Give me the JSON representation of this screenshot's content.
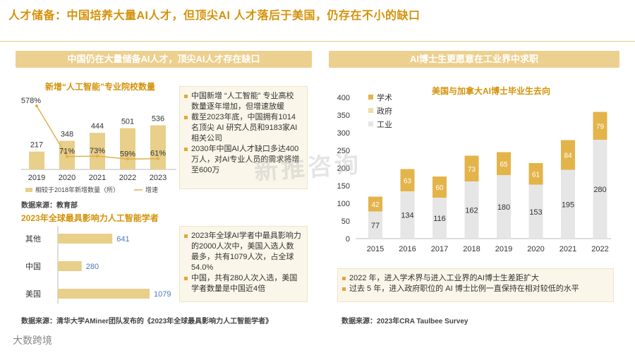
{
  "title": "人才储备：中国培养大量AI人才，但顶尖AI 人才落后于美国，仍存在不小的缺口",
  "left_panel": {
    "header": "中国仍在大量储备AI人才，顶尖AI人才存在缺口",
    "chart1_title": "新增“人工智能”专业院校数量",
    "chart1_bullets": [
      "中国新增 “人工智能” 专业高校数量逐年增加，但增速放缓",
      "截至2023年底，中国拥有1014名顶尖 AI 研究人员和9183家AI 相关公司",
      "2030年中国AI人才缺口多达400万人，对AI专业人员的需求将增至600万"
    ],
    "chart1_source": "数据来源：教育部",
    "chart2_title": "2023年全球最具影响力人工智能学者",
    "chart2_bullets": [
      "2023年全球AI学者中最具影响力的2000人次中，美国入选人数最多，共有1079人次，占全球54.0%",
      "中国，共有280人次入选，美国学者数量是中国近4倍"
    ],
    "chart2_source": "数据来源：清华大学AMiner团队发布的《2023年全球最具影响力人工智能学者》"
  },
  "right_panel": {
    "header": "AI博士生更愿意在工业界中求职",
    "bullets": [
      "2022 年，进入学术界与进入工业界的AI博士生差距扩大",
      "过去 5 年，进入政府职位的 AI 博士比例一直保持在相对较低的水平"
    ],
    "source": "数据来源：2023年CRA Taulbee Survey"
  },
  "watermark": "新推咨询",
  "corner_mark": "大数跨境",
  "colors": {
    "accent": "#d4920a",
    "header_bg": "#ecd08f",
    "bar_gold": "#e8cf8a",
    "line_gold": "#e0b04a",
    "academia": "#e3b44a",
    "government": "#f0dca8",
    "industry": "#e6e6e6",
    "bar_blue": "#4e79b8"
  },
  "chart_data": [
    {
      "type": "bar",
      "title": "新增“人工智能”专业院校数量",
      "categories": [
        "2019",
        "2020",
        "2021",
        "2022",
        "2023"
      ],
      "series": [
        {
          "name": "相较于2018年新增数量（所）",
          "kind": "bar",
          "values": [
            217,
            348,
            444,
            501,
            536
          ],
          "labels": [
            "217",
            "348",
            "444",
            "501",
            "536"
          ]
        },
        {
          "name": "增速",
          "kind": "line",
          "values": [
            578,
            71,
            73,
            59,
            61
          ],
          "labels": [
            "578%",
            "71%",
            "73%",
            "59%",
            "61%"
          ]
        }
      ]
    },
    {
      "type": "bar",
      "orientation": "horizontal",
      "title": "2023年全球最具影响力人工智能学者",
      "categories": [
        "其他",
        "中国",
        "美国"
      ],
      "values": [
        641,
        280,
        1079
      ]
    },
    {
      "type": "bar",
      "stacked": true,
      "title": "美国与加拿大AI博士毕业生去向",
      "categories": [
        "2015",
        "2016",
        "2017",
        "2018",
        "2019",
        "2020",
        "2021",
        "2022"
      ],
      "ylim": [
        0,
        400
      ],
      "yticks": [
        "0",
        "50",
        "100",
        "150",
        "200",
        "250",
        "300",
        "350",
        "400"
      ],
      "series": [
        {
          "name": "工业",
          "values": [
            77,
            134,
            116,
            162,
            180,
            153,
            195,
            280
          ]
        },
        {
          "name": "政府",
          "values": [
            0,
            0,
            0,
            0,
            0,
            0,
            0,
            0
          ]
        },
        {
          "name": "学术",
          "values": [
            42,
            63,
            60,
            73,
            65,
            61,
            84,
            79
          ]
        }
      ]
    }
  ]
}
